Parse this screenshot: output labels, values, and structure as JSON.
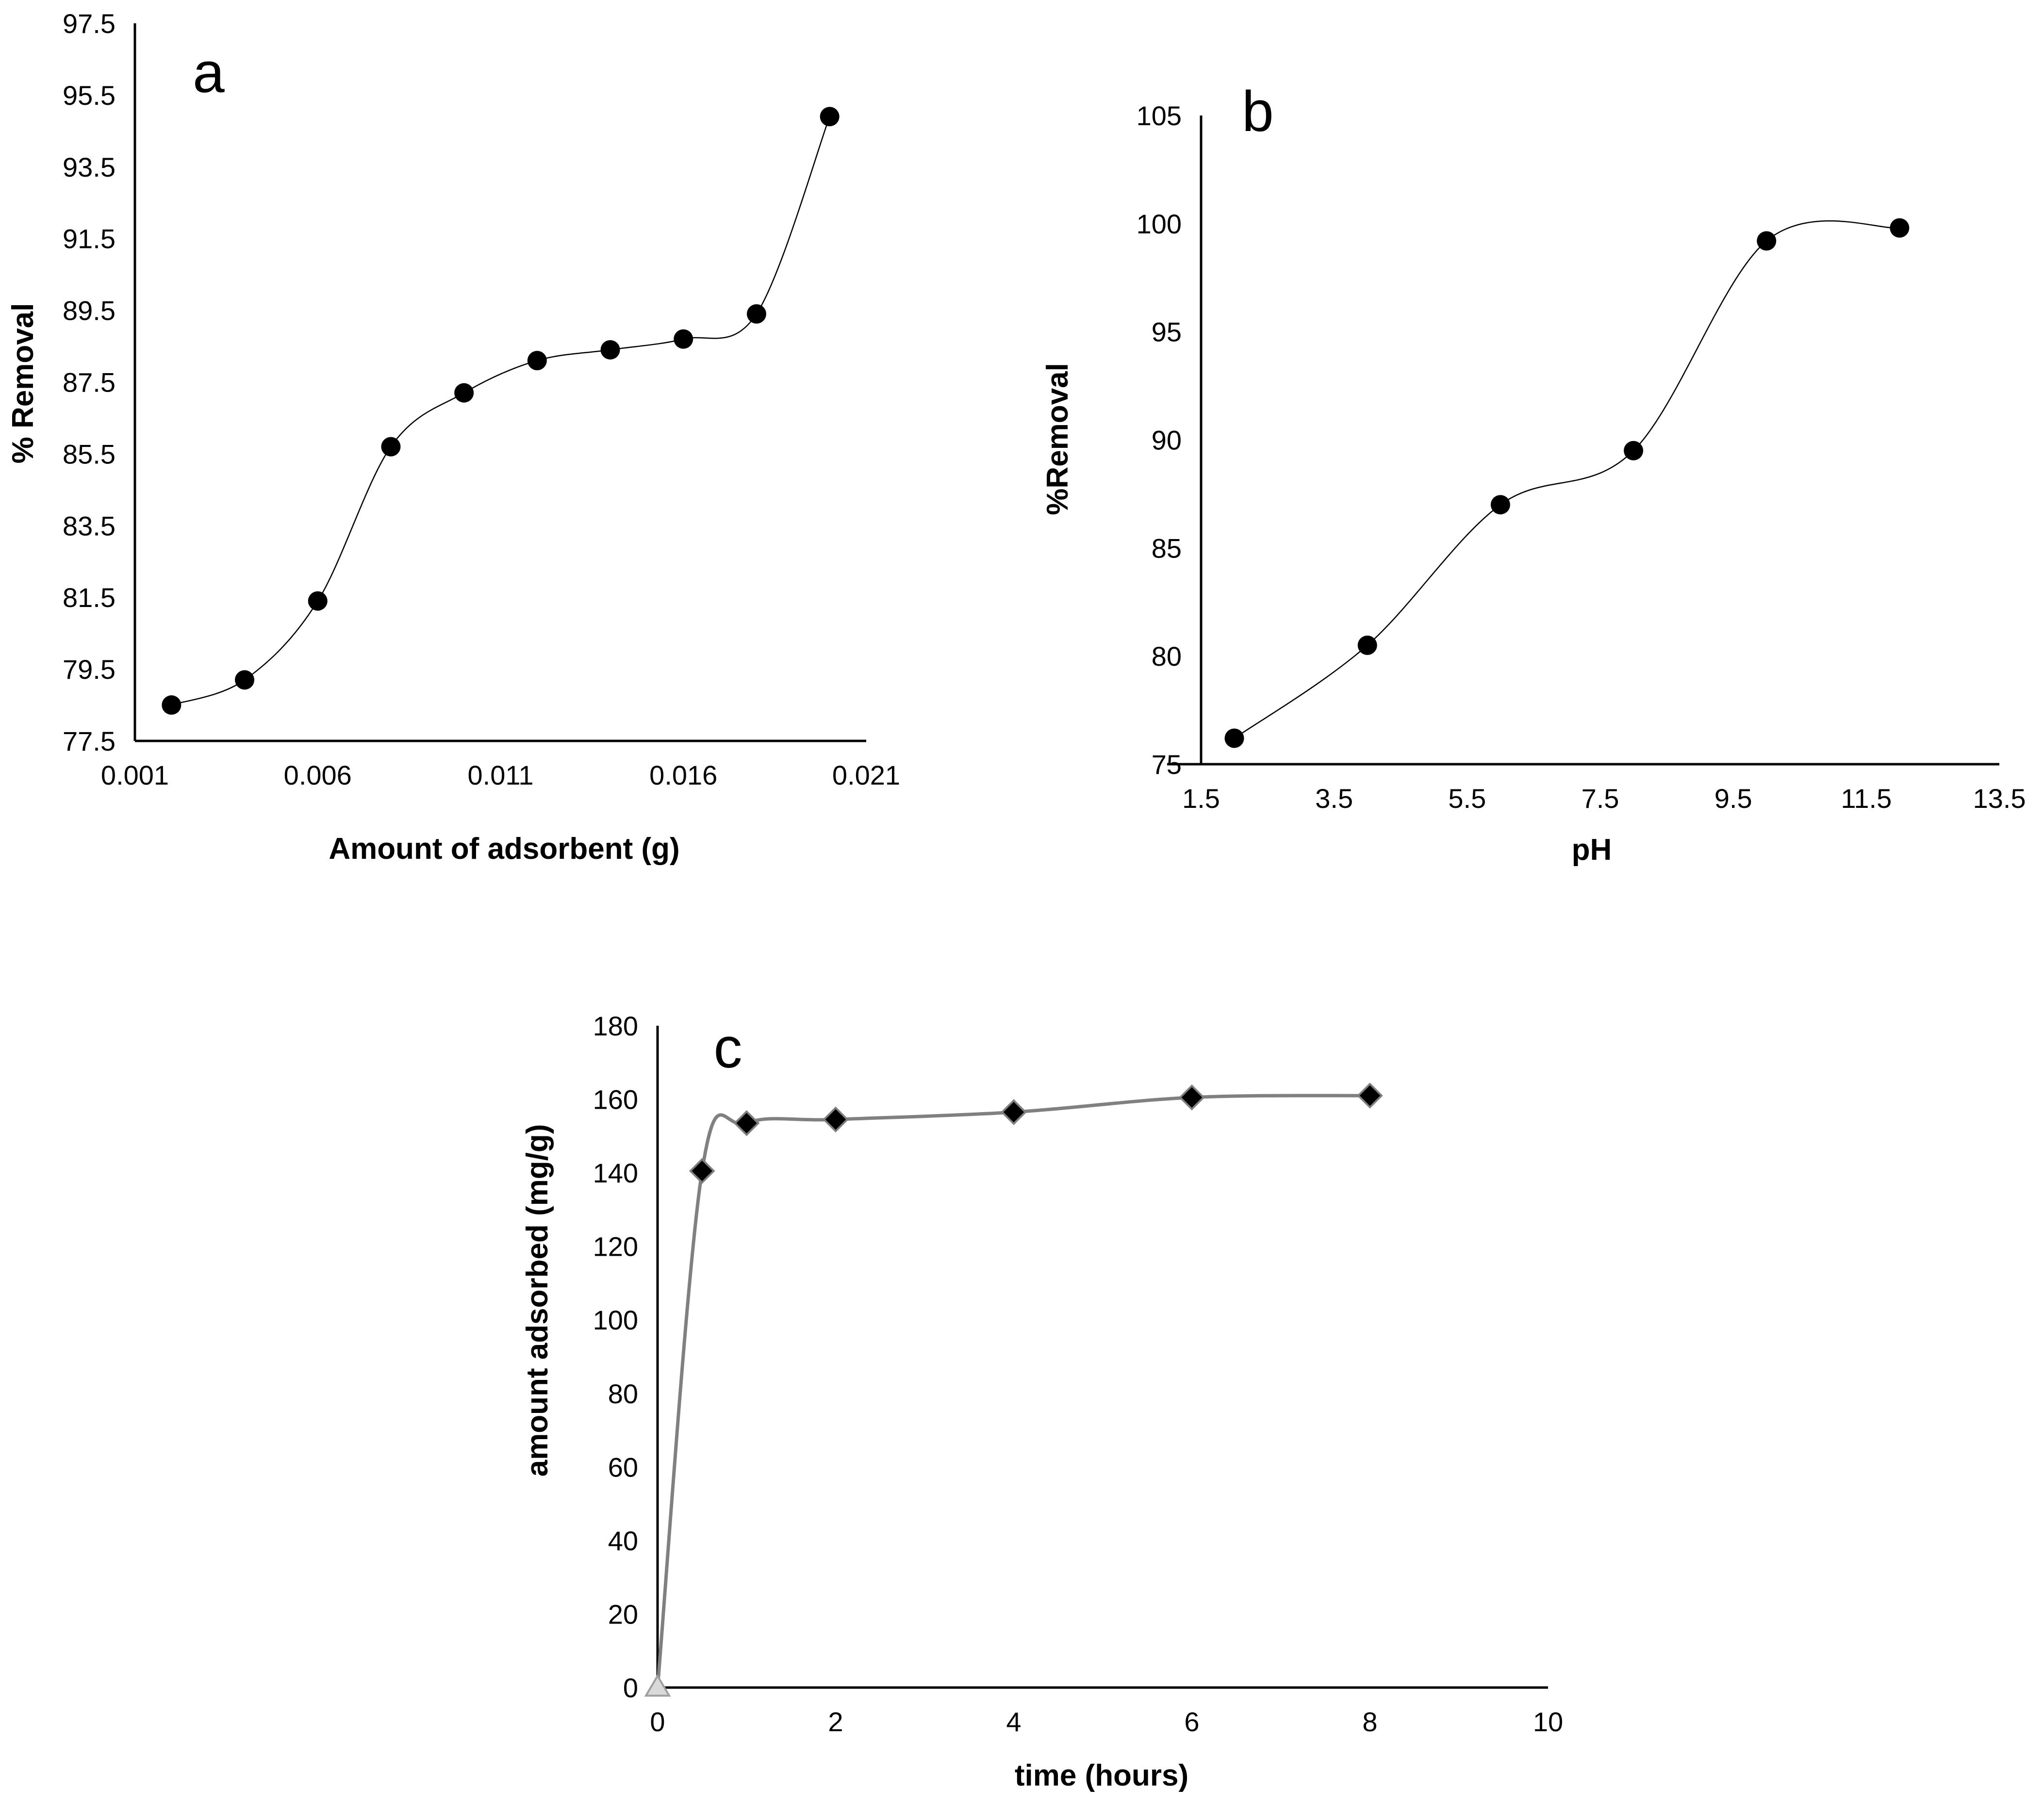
{
  "chart_data": [
    {
      "type": "scatter",
      "panel_label": "a",
      "xlabel": "Amount of adsorbent (g)",
      "ylabel": "% Removal",
      "xlim": [
        0.001,
        0.021
      ],
      "ylim": [
        77.5,
        97.5
      ],
      "x_tick_labels": [
        "0.001",
        "0.006",
        "0.011",
        "0.016",
        "0.021"
      ],
      "y_tick_labels": [
        "77.5",
        "79.5",
        "81.5",
        "83.5",
        "85.5",
        "87.5",
        "89.5",
        "91.5",
        "93.5",
        "95.5",
        "97.5"
      ],
      "line_style": "smoothed",
      "marker": "circle",
      "series": [
        {
          "name": "% Removal",
          "x": [
            0.002,
            0.004,
            0.006,
            0.008,
            0.01,
            0.012,
            0.014,
            0.016,
            0.018,
            0.02
          ],
          "y": [
            78.5,
            79.2,
            81.4,
            85.7,
            87.2,
            88.1,
            88.4,
            88.7,
            89.4,
            94.9
          ]
        }
      ]
    },
    {
      "type": "scatter",
      "panel_label": "b",
      "xlabel": "pH",
      "ylabel": "%Removal",
      "xlim": [
        1.5,
        13.5
      ],
      "ylim": [
        75,
        105
      ],
      "x_tick_labels": [
        "1.5",
        "3.5",
        "5.5",
        "7.5",
        "9.5",
        "11.5",
        "13.5"
      ],
      "y_tick_labels": [
        "75",
        "80",
        "85",
        "90",
        "95",
        "100",
        "105"
      ],
      "line_style": "smoothed",
      "marker": "circle",
      "series": [
        {
          "name": "%Removal",
          "x": [
            2,
            4,
            6,
            8,
            10,
            12
          ],
          "y": [
            76.2,
            80.5,
            87.0,
            89.5,
            99.2,
            99.8
          ]
        }
      ]
    },
    {
      "type": "scatter",
      "panel_label": "c",
      "xlabel": "time (hours)",
      "ylabel": "amount adsorbed (mg/g)",
      "xlim": [
        0,
        10
      ],
      "ylim": [
        0,
        180
      ],
      "x_tick_labels": [
        "0",
        "2",
        "4",
        "6",
        "8",
        "10"
      ],
      "y_tick_labels": [
        "0",
        "20",
        "40",
        "60",
        "80",
        "100",
        "120",
        "140",
        "160",
        "180"
      ],
      "line_style": "smoothed",
      "marker": "diamond",
      "series": [
        {
          "name": "amount adsorbed",
          "x": [
            0,
            0.5,
            1,
            2,
            4,
            6,
            8
          ],
          "y": [
            0,
            140.5,
            153.5,
            154.5,
            156.5,
            160.5,
            161
          ]
        }
      ]
    }
  ]
}
